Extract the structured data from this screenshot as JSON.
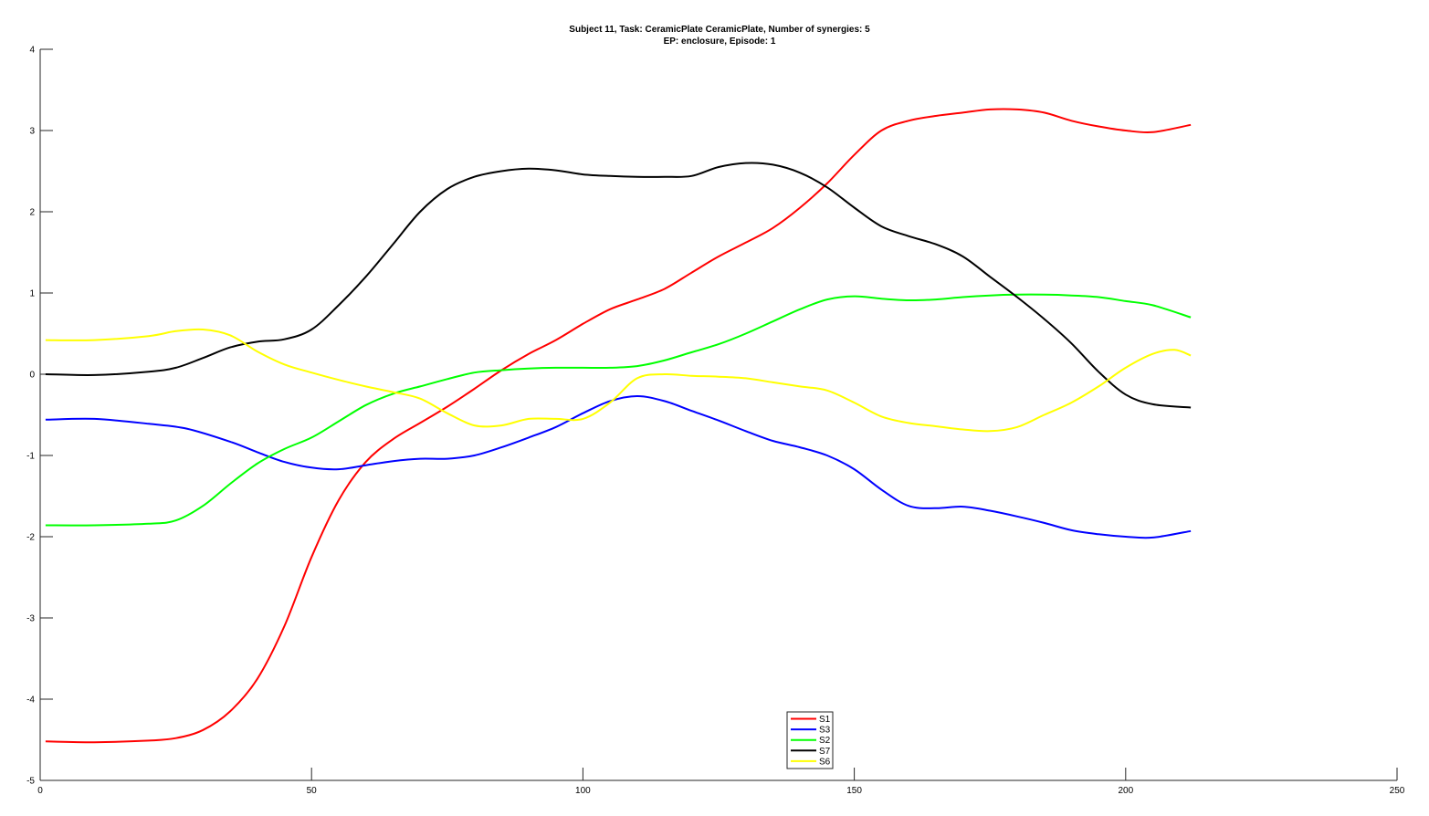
{
  "chart_data": {
    "type": "line",
    "title": "Subject 11, Task: CeramicPlate CeramicPlate, Number of synergies: 5",
    "subtitle": "EP: enclosure, Episode: 1",
    "xlabel": "",
    "ylabel": "",
    "xlim": [
      0,
      250
    ],
    "ylim": [
      -5,
      4
    ],
    "xticks": [
      0,
      50,
      100,
      150,
      200,
      250
    ],
    "yticks": [
      -5,
      -4,
      -3,
      -2,
      -1,
      0,
      1,
      2,
      3,
      4
    ],
    "xtick_labels": [
      "0",
      "50",
      "100",
      "150",
      "200",
      "250"
    ],
    "ytick_labels": [
      "-5",
      "-4",
      "-3",
      "-2",
      "-1",
      "0",
      "1",
      "2",
      "3",
      "4"
    ],
    "grid": false,
    "legend_position": "bottom-center",
    "series": [
      {
        "name": "S1",
        "color": "#ff0000",
        "x": [
          1,
          10,
          20,
          25,
          30,
          35,
          40,
          45,
          50,
          55,
          60,
          65,
          70,
          75,
          80,
          85,
          90,
          95,
          100,
          105,
          110,
          115,
          120,
          125,
          130,
          135,
          140,
          145,
          150,
          155,
          160,
          165,
          170,
          175,
          180,
          185,
          190,
          195,
          200,
          205,
          212
        ],
        "values": [
          -4.52,
          -4.53,
          -4.51,
          -4.48,
          -4.38,
          -4.15,
          -3.75,
          -3.1,
          -2.25,
          -1.55,
          -1.08,
          -0.8,
          -0.6,
          -0.4,
          -0.18,
          0.05,
          0.25,
          0.42,
          0.62,
          0.8,
          0.92,
          1.05,
          1.25,
          1.45,
          1.62,
          1.8,
          2.05,
          2.35,
          2.7,
          3.0,
          3.12,
          3.18,
          3.22,
          3.26,
          3.26,
          3.22,
          3.12,
          3.05,
          3.0,
          2.98,
          3.07
        ]
      },
      {
        "name": "S3",
        "color": "#0000ff",
        "x": [
          1,
          10,
          20,
          27,
          35,
          40,
          45,
          50,
          55,
          60,
          65,
          70,
          75,
          80,
          85,
          90,
          95,
          100,
          105,
          110,
          115,
          120,
          125,
          130,
          135,
          140,
          145,
          150,
          155,
          160,
          165,
          170,
          175,
          180,
          185,
          190,
          195,
          200,
          205,
          212
        ],
        "values": [
          -0.56,
          -0.55,
          -0.61,
          -0.67,
          -0.83,
          -0.96,
          -1.08,
          -1.15,
          -1.17,
          -1.12,
          -1.07,
          -1.04,
          -1.04,
          -1.0,
          -0.9,
          -0.78,
          -0.65,
          -0.48,
          -0.33,
          -0.27,
          -0.33,
          -0.45,
          -0.57,
          -0.7,
          -0.82,
          -0.9,
          -1.0,
          -1.17,
          -1.42,
          -1.62,
          -1.65,
          -1.63,
          -1.68,
          -1.75,
          -1.83,
          -1.92,
          -1.97,
          -2.0,
          -2.01,
          -1.93
        ]
      },
      {
        "name": "S2",
        "color": "#00ff00",
        "x": [
          1,
          10,
          20,
          25,
          30,
          35,
          40,
          45,
          50,
          55,
          60,
          65,
          70,
          75,
          80,
          85,
          90,
          95,
          100,
          105,
          110,
          115,
          120,
          125,
          130,
          135,
          140,
          145,
          150,
          155,
          160,
          165,
          170,
          175,
          180,
          185,
          190,
          195,
          200,
          205,
          212
        ],
        "values": [
          -1.86,
          -1.86,
          -1.84,
          -1.8,
          -1.62,
          -1.35,
          -1.1,
          -0.92,
          -0.78,
          -0.58,
          -0.38,
          -0.24,
          -0.15,
          -0.06,
          0.02,
          0.05,
          0.07,
          0.08,
          0.08,
          0.08,
          0.1,
          0.17,
          0.27,
          0.37,
          0.5,
          0.65,
          0.8,
          0.92,
          0.96,
          0.93,
          0.91,
          0.92,
          0.95,
          0.97,
          0.98,
          0.98,
          0.97,
          0.95,
          0.9,
          0.85,
          0.7
        ]
      },
      {
        "name": "S7",
        "color": "#000000",
        "x": [
          1,
          10,
          20,
          25,
          30,
          35,
          40,
          45,
          50,
          55,
          60,
          65,
          70,
          75,
          80,
          85,
          90,
          95,
          100,
          105,
          110,
          115,
          120,
          125,
          130,
          135,
          140,
          145,
          150,
          155,
          160,
          165,
          170,
          175,
          180,
          185,
          190,
          195,
          200,
          205,
          212
        ],
        "values": [
          0.0,
          -0.01,
          0.03,
          0.08,
          0.2,
          0.33,
          0.4,
          0.43,
          0.55,
          0.85,
          1.2,
          1.6,
          2.0,
          2.28,
          2.43,
          2.5,
          2.53,
          2.51,
          2.46,
          2.44,
          2.43,
          2.43,
          2.44,
          2.55,
          2.6,
          2.58,
          2.48,
          2.3,
          2.05,
          1.82,
          1.7,
          1.6,
          1.45,
          1.2,
          0.95,
          0.68,
          0.38,
          0.03,
          -0.25,
          -0.37,
          -0.41
        ]
      },
      {
        "name": "S6",
        "color": "#ffff00",
        "x": [
          1,
          10,
          20,
          25,
          30,
          35,
          40,
          45,
          50,
          55,
          60,
          65,
          70,
          75,
          80,
          85,
          90,
          95,
          100,
          105,
          110,
          115,
          120,
          125,
          130,
          135,
          140,
          145,
          150,
          155,
          160,
          165,
          170,
          175,
          180,
          185,
          190,
          195,
          200,
          205,
          209,
          212
        ],
        "values": [
          0.42,
          0.42,
          0.47,
          0.53,
          0.55,
          0.48,
          0.28,
          0.12,
          0.02,
          -0.07,
          -0.15,
          -0.22,
          -0.3,
          -0.48,
          -0.63,
          -0.63,
          -0.55,
          -0.55,
          -0.55,
          -0.35,
          -0.05,
          0.0,
          -0.02,
          -0.03,
          -0.05,
          -0.1,
          -0.15,
          -0.2,
          -0.35,
          -0.52,
          -0.6,
          -0.64,
          -0.68,
          -0.7,
          -0.65,
          -0.5,
          -0.35,
          -0.15,
          0.08,
          0.25,
          0.3,
          0.23
        ]
      }
    ]
  }
}
